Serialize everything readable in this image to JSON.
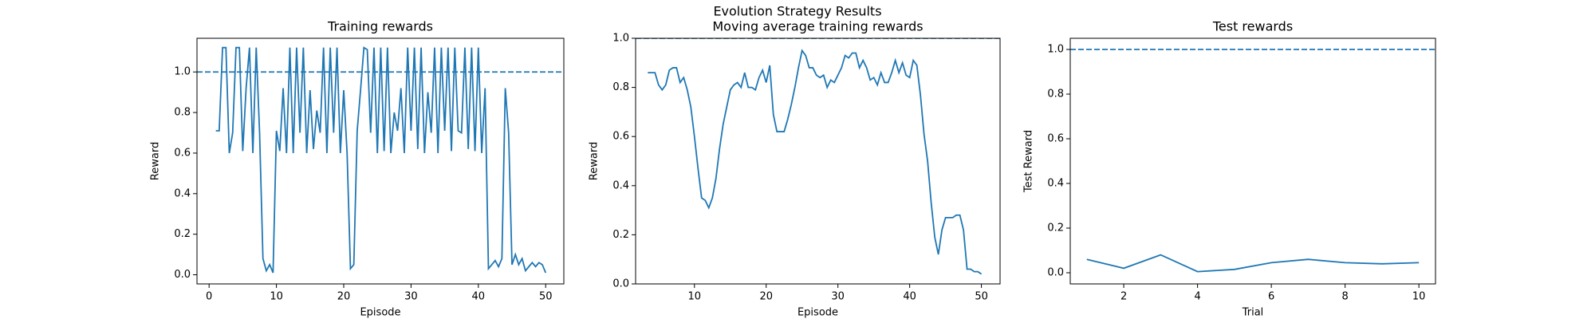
{
  "title": "Evolution Strategy Results",
  "chart_data": [
    {
      "type": "line",
      "title": "Training rewards",
      "xlabel": "Episode",
      "ylabel": "Reward",
      "color": "#1f77b4",
      "x": [
        1,
        1.5,
        2,
        2.5,
        3,
        3.5,
        4,
        4.5,
        5,
        5.5,
        6,
        6.5,
        7,
        7.5,
        8,
        8.5,
        9,
        9.5,
        10,
        10.5,
        11,
        11.5,
        12,
        12.5,
        13,
        13.5,
        14,
        14.5,
        15,
        15.5,
        16,
        16.5,
        17,
        17.5,
        18,
        18.5,
        19,
        19.5,
        20,
        20.5,
        21,
        21.5,
        22,
        22.5,
        23,
        23.5,
        24,
        24.5,
        25,
        25.5,
        26,
        26.5,
        27,
        27.5,
        28,
        28.5,
        29,
        29.5,
        30,
        30.5,
        31,
        31.5,
        32,
        32.5,
        33,
        33.5,
        34,
        34.5,
        35,
        35.5,
        36,
        36.5,
        37,
        37.5,
        38,
        38.5,
        39,
        39.5,
        40,
        40.5,
        41,
        41.5,
        42,
        42.5,
        43,
        43.5,
        44,
        44.5,
        45,
        45.5,
        46,
        46.5,
        47,
        47.5,
        48,
        48.5,
        49,
        49.5,
        50
      ],
      "values": [
        0.71,
        0.71,
        1.12,
        1.12,
        0.6,
        0.7,
        1.12,
        1.12,
        0.61,
        0.92,
        1.12,
        0.6,
        1.12,
        0.7,
        0.08,
        0.02,
        0.05,
        0.01,
        0.71,
        0.61,
        0.92,
        0.6,
        1.12,
        0.6,
        1.12,
        0.7,
        1.12,
        0.6,
        0.91,
        0.62,
        0.81,
        0.7,
        1.12,
        0.6,
        1.12,
        0.7,
        1.12,
        0.6,
        0.91,
        0.6,
        0.03,
        0.05,
        0.71,
        0.91,
        1.12,
        1.11,
        0.7,
        1.12,
        0.6,
        1.12,
        0.61,
        1.12,
        0.6,
        0.8,
        0.71,
        0.92,
        0.6,
        1.12,
        0.71,
        1.12,
        0.62,
        1.12,
        0.6,
        0.9,
        0.7,
        1.12,
        0.6,
        1.12,
        0.71,
        1.12,
        0.61,
        1.12,
        0.71,
        0.7,
        1.12,
        0.62,
        1.12,
        0.61,
        1.12,
        0.6,
        0.92,
        0.03,
        0.05,
        0.07,
        0.04,
        0.08,
        0.92,
        0.7,
        0.05,
        0.1,
        0.05,
        0.08,
        0.02,
        0.04,
        0.06,
        0.04,
        0.06,
        0.05,
        0.01
      ],
      "xlim": [
        -1.8,
        52.7
      ],
      "xticks": [
        0,
        10,
        20,
        30,
        40,
        50
      ],
      "ylim": [
        -0.045,
        1.166
      ],
      "yticks": [
        {
          "value": 0,
          "label": "0.0"
        },
        {
          "value": 0.2,
          "label": "0.2"
        },
        {
          "value": 0.4,
          "label": "0.4"
        },
        {
          "value": 0.6,
          "label": "0.6"
        },
        {
          "value": 0.8,
          "label": "0.8"
        },
        {
          "value": 1,
          "label": "1.0"
        }
      ],
      "hline": 1
    },
    {
      "type": "line",
      "title": "Moving average training rewards",
      "xlabel": "Episode",
      "ylabel": "Reward",
      "color": "#1f77b4",
      "x": [
        3.5,
        4,
        4.5,
        5,
        5.5,
        6,
        6.5,
        7,
        7.5,
        8,
        8.5,
        9,
        9.5,
        10,
        10.5,
        11,
        11.5,
        12,
        12.5,
        13,
        13.5,
        14,
        14.5,
        15,
        15.5,
        16,
        16.5,
        17,
        17.5,
        18,
        18.5,
        19,
        19.5,
        20,
        20.5,
        21,
        21.5,
        22,
        22.5,
        23,
        23.5,
        24,
        24.5,
        25,
        25.5,
        26,
        26.5,
        27,
        27.5,
        28,
        28.5,
        29,
        29.5,
        30,
        30.5,
        31,
        31.5,
        32,
        32.5,
        33,
        33.5,
        34,
        34.5,
        35,
        35.5,
        36,
        36.5,
        37,
        37.5,
        38,
        38.5,
        39,
        39.5,
        40,
        40.5,
        41,
        41.5,
        42,
        42.5,
        43,
        43.5,
        44,
        44.5,
        45,
        45.5,
        46,
        46.5,
        47,
        47.5,
        48,
        48.5,
        49,
        49.5,
        50
      ],
      "values": [
        0.86,
        0.86,
        0.86,
        0.81,
        0.79,
        0.81,
        0.87,
        0.88,
        0.88,
        0.82,
        0.84,
        0.79,
        0.72,
        0.6,
        0.47,
        0.35,
        0.34,
        0.31,
        0.35,
        0.43,
        0.55,
        0.65,
        0.72,
        0.79,
        0.81,
        0.82,
        0.8,
        0.86,
        0.8,
        0.8,
        0.79,
        0.84,
        0.87,
        0.82,
        0.89,
        0.69,
        0.62,
        0.62,
        0.62,
        0.67,
        0.73,
        0.8,
        0.88,
        0.95,
        0.93,
        0.88,
        0.88,
        0.85,
        0.84,
        0.85,
        0.8,
        0.83,
        0.82,
        0.85,
        0.88,
        0.93,
        0.92,
        0.94,
        0.94,
        0.88,
        0.91,
        0.88,
        0.83,
        0.84,
        0.81,
        0.86,
        0.82,
        0.82,
        0.86,
        0.91,
        0.86,
        0.9,
        0.85,
        0.84,
        0.91,
        0.89,
        0.77,
        0.61,
        0.5,
        0.33,
        0.19,
        0.12,
        0.22,
        0.27,
        0.27,
        0.27,
        0.28,
        0.28,
        0.22,
        0.06,
        0.06,
        0.05,
        0.05,
        0.04
      ],
      "xlim": [
        1.8,
        52.6
      ],
      "xticks": [
        10,
        20,
        30,
        40,
        50
      ],
      "ylim": [
        0,
        1
      ],
      "yticks": [
        {
          "value": 0,
          "label": "0.0"
        },
        {
          "value": 0.2,
          "label": "0.2"
        },
        {
          "value": 0.4,
          "label": "0.4"
        },
        {
          "value": 0.6,
          "label": "0.6"
        },
        {
          "value": 0.8,
          "label": "0.8"
        },
        {
          "value": 1,
          "label": "1.0"
        }
      ],
      "hline": 1
    },
    {
      "type": "line",
      "title": "Test rewards",
      "xlabel": "Trial",
      "ylabel": "Test Reward",
      "color": "#1f77b4",
      "x": [
        1,
        2,
        3,
        4,
        5,
        6,
        7,
        8,
        9,
        10
      ],
      "values": [
        0.06,
        0.02,
        0.08,
        0.005,
        0.015,
        0.045,
        0.06,
        0.045,
        0.04,
        0.045
      ],
      "xlim": [
        0.55,
        10.45
      ],
      "xticks": [
        2,
        4,
        6,
        8,
        10
      ],
      "ylim": [
        -0.05,
        1.05
      ],
      "yticks": [
        {
          "value": 0,
          "label": "0.0"
        },
        {
          "value": 0.2,
          "label": "0.2"
        },
        {
          "value": 0.4,
          "label": "0.4"
        },
        {
          "value": 0.6,
          "label": "0.6"
        },
        {
          "value": 0.8,
          "label": "0.8"
        },
        {
          "value": 1,
          "label": "1.0"
        }
      ],
      "hline": 1
    }
  ]
}
